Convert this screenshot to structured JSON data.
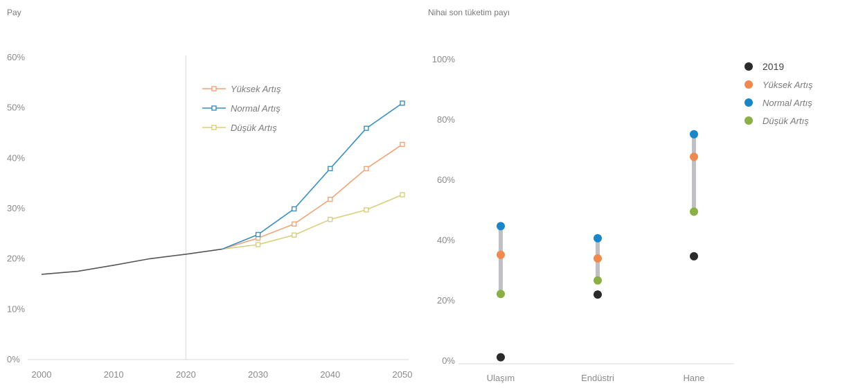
{
  "colors": {
    "historical": "#555555",
    "yuksek": "#f2a477",
    "normal": "#3a8fc0",
    "dusuk": "#d8cf7a",
    "gridline": "#d8d8d8",
    "year2019": "#2b2b2b",
    "yuksek_dot": "#ee8a4f",
    "normal_dot": "#1a86c7",
    "dusuk_dot": "#8ab045",
    "range_bar": "#c0c0c4"
  },
  "chart_data": [
    {
      "type": "line",
      "ylabel": "Pay",
      "xlim": [
        2000,
        2050
      ],
      "ylim": [
        0,
        60
      ],
      "x_ticks": [
        "2000",
        "2010",
        "2020",
        "2030",
        "2040",
        "2050"
      ],
      "y_ticks": [
        "0%",
        "10%",
        "20%",
        "30%",
        "40%",
        "50%",
        "60%"
      ],
      "divider_x": 2020,
      "historical": {
        "x": [
          2000,
          2005,
          2010,
          2015,
          2020,
          2025
        ],
        "values": [
          16.8,
          17.4,
          18.6,
          19.9,
          20.8,
          21.8
        ]
      },
      "legend": [
        "Yüksek Artış",
        "Normal Artış",
        "Düşük Artış"
      ],
      "series": [
        {
          "name": "Yüksek Artış",
          "x": [
            2025,
            2030,
            2035,
            2040,
            2045,
            2050
          ],
          "values": [
            21.8,
            24.0,
            26.8,
            31.7,
            37.8,
            42.6
          ]
        },
        {
          "name": "Normal Artış",
          "x": [
            2025,
            2030,
            2035,
            2040,
            2045,
            2050
          ],
          "values": [
            21.8,
            24.7,
            29.8,
            37.8,
            45.8,
            50.8
          ]
        },
        {
          "name": "Düşük Artış",
          "x": [
            2025,
            2030,
            2035,
            2040,
            2045,
            2050
          ],
          "values": [
            21.8,
            22.7,
            24.6,
            27.7,
            29.6,
            32.6
          ]
        }
      ]
    },
    {
      "type": "scatter",
      "ylabel": "Nihai son tüketim payı",
      "ylim": [
        0,
        100
      ],
      "y_ticks": [
        "0%",
        "20%",
        "40%",
        "60%",
        "80%",
        "100%"
      ],
      "categories": [
        "Ulaşım",
        "Endüstri",
        "Hane"
      ],
      "legend": [
        "2019",
        "Yüksek Artış",
        "Normal Artış",
        "Düşük Artış"
      ],
      "series": [
        {
          "name": "2019",
          "values": [
            1,
            21.8,
            34.5
          ]
        },
        {
          "name": "Yüksek Artış",
          "values": [
            35,
            33.8,
            67.5
          ]
        },
        {
          "name": "Normal Artış",
          "values": [
            44.5,
            40.5,
            75
          ]
        },
        {
          "name": "Düşük Artış",
          "values": [
            22,
            26.5,
            49.3
          ]
        }
      ]
    }
  ]
}
